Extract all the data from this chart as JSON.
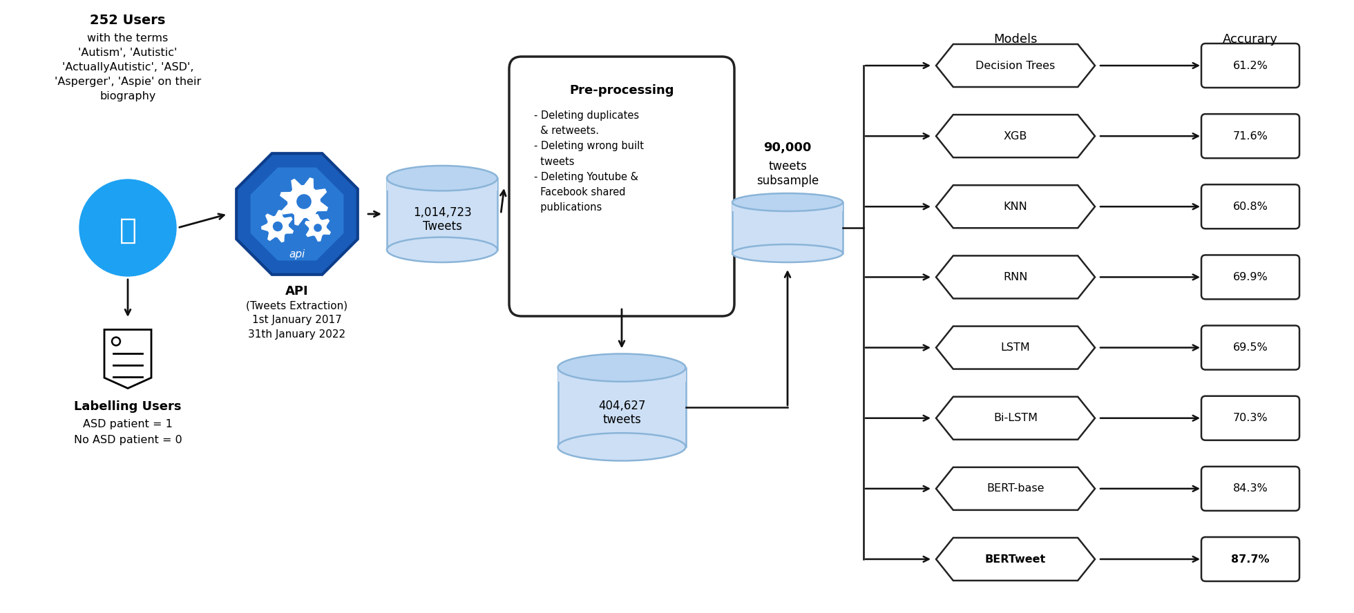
{
  "bg_color": "#ffffff",
  "models": [
    "Decision Trees",
    "XGB",
    "KNN",
    "RNN",
    "LSTM",
    "Bi-LSTM",
    "BERT-base",
    "BERTweet"
  ],
  "accuracies": [
    "61.2%",
    "71.6%",
    "60.8%",
    "69.9%",
    "69.5%",
    "70.3%",
    "84.3%",
    "87.7%"
  ],
  "header_models": "Models",
  "header_accuracy": "Accurary",
  "users_bold": "252 Users",
  "users_subtext": "with the terms\n'Autism', 'Autistic'\n'ActuallyAutistic', 'ASD',\n'Asperger', 'Aspie' on their\nbiography",
  "labelling_bold": "Labelling Users",
  "labelling_sub1": "ASD patient = 1",
  "labelling_sub2": "No ASD patient = 0",
  "api_bold": "API",
  "api_sub": "(Tweets Extraction)\n1st January 2017\n31th January 2022",
  "api_label": "api",
  "db1_text": "1,014,723\nTweets",
  "preprocess_title": "Pre-processing",
  "preprocess_body": "- Deleting duplicates\n  & retweets.\n- Deleting wrong built\n  tweets\n- Deleting Youtube &\n  Facebook shared\n  publications",
  "db2_text": "404,627\ntweets",
  "subsample_bold": "90,000",
  "subsample_sub": "tweets\nsubsample",
  "twitter_blue": "#1DA1F2",
  "api_dark": "#1a5cba",
  "api_mid": "#2979d4",
  "api_inner_bg": "#3b8fe8",
  "db_fill": "#CCDFF5",
  "db_top_fill": "#b8d4f0",
  "db_stroke": "#8ab4d8",
  "preproc_stroke": "#222222",
  "arrow_color": "#111111",
  "model_fill": "#ffffff",
  "model_stroke": "#222222",
  "acc_fill": "#ffffff",
  "acc_stroke": "#222222"
}
